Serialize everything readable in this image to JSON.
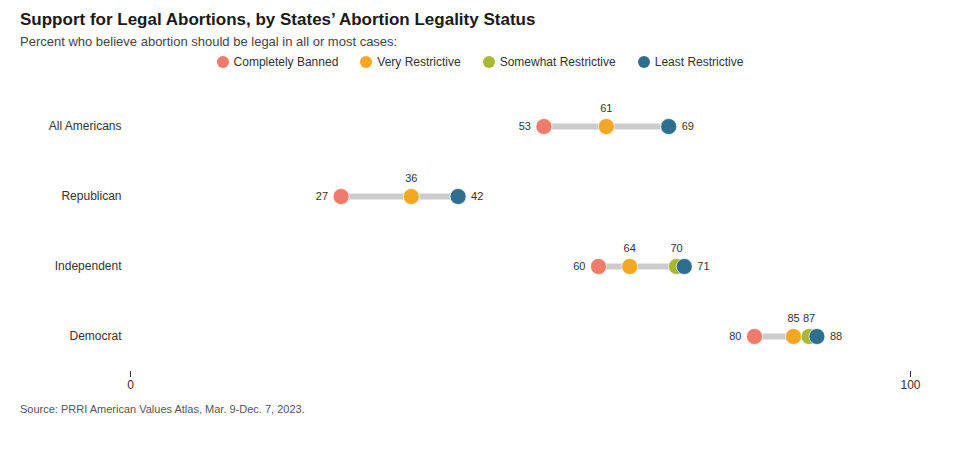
{
  "chart_data": {
    "type": "dumbbell",
    "title": "Support for Legal Abortions, by States’ Abortion Legality Status",
    "subtitle": "Percent who believe abortion should be legal in all or most cases:",
    "source": "Source: PRRI American Values Atlas, Mar. 9-Dec. 7, 2023.",
    "orientation": "horizontal",
    "categories": [
      "All Americans",
      "Republican",
      "Independent",
      "Democrat"
    ],
    "series": [
      {
        "name": "Completely Banned",
        "color": "#F07B6B",
        "values": [
          53,
          27,
          60,
          80
        ]
      },
      {
        "name": "Very Restrictive",
        "color": "#F5A623",
        "values": [
          61,
          36,
          64,
          85
        ]
      },
      {
        "name": "Somewhat Restrictive",
        "color": "#A8B830",
        "values": [
          69,
          42,
          70,
          87
        ]
      },
      {
        "name": "Least Restrictive",
        "color": "#2E6E8E",
        "values": [
          69,
          42,
          71,
          88
        ]
      }
    ],
    "xlim": [
      0,
      100
    ],
    "xticks": [
      0,
      100
    ],
    "data_labels": true,
    "legend": "top",
    "grid": false
  }
}
